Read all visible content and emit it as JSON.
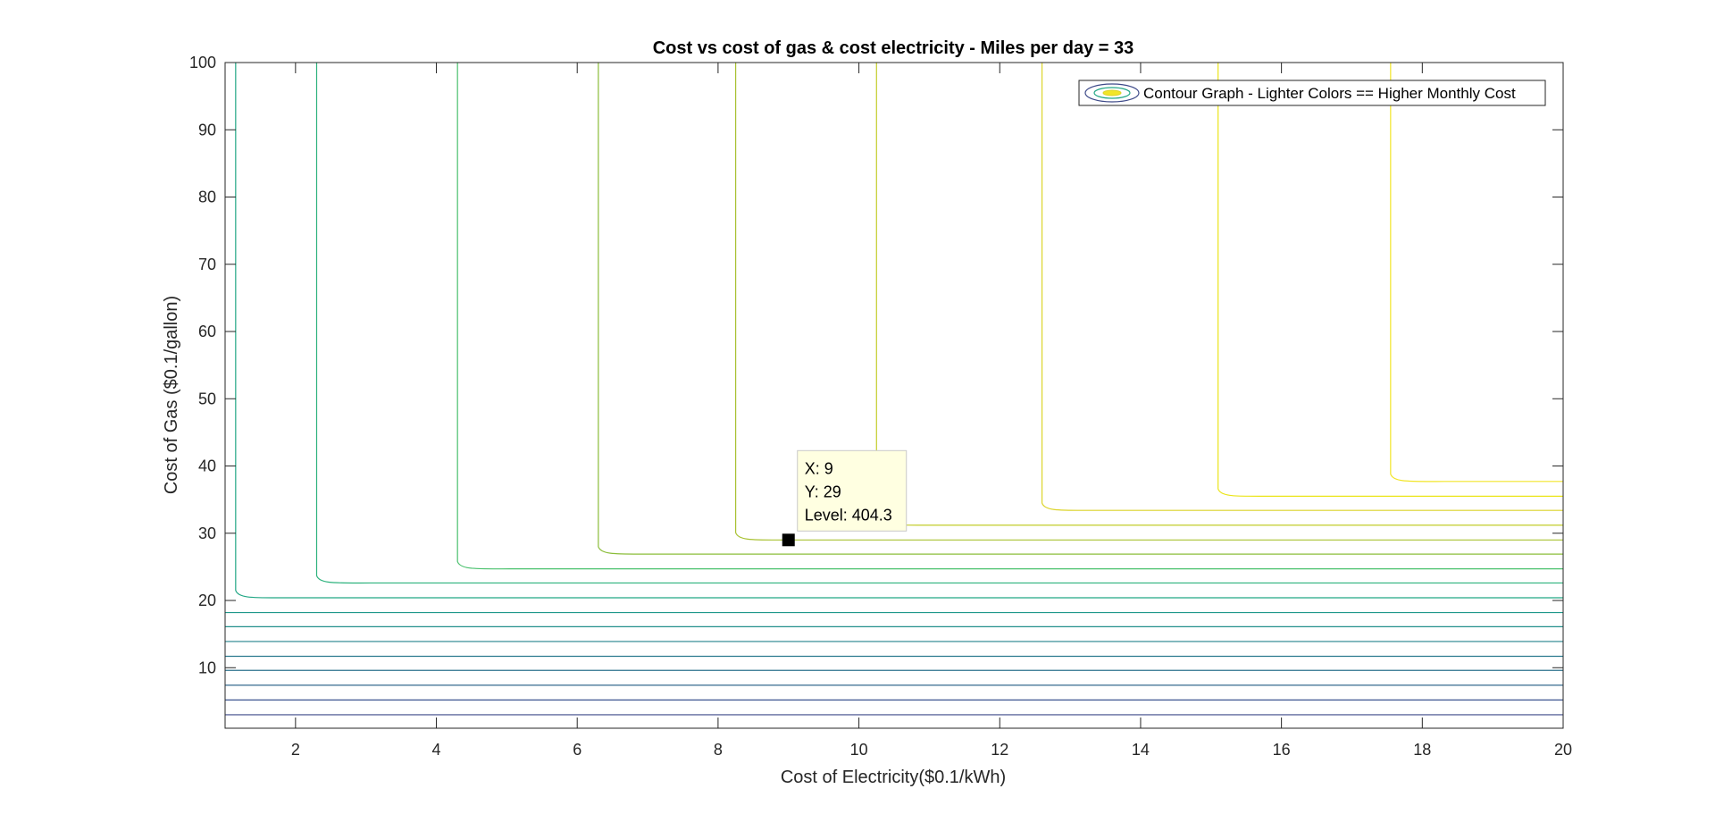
{
  "chart_data": {
    "type": "contour",
    "title": "Cost vs cost of gas & cost electricity  - Miles per day = 33",
    "xlabel": "Cost of Electricity($0.1/kWh)",
    "ylabel": "Cost of Gas ($0.1/gallon)",
    "xlim": [
      1,
      20
    ],
    "ylim": [
      1,
      100
    ],
    "xticks": [
      2,
      4,
      6,
      8,
      10,
      12,
      14,
      16,
      18,
      20
    ],
    "yticks": [
      10,
      20,
      30,
      40,
      50,
      60,
      70,
      80,
      90,
      100
    ],
    "xtick_labels": [
      "2",
      "4",
      "6",
      "8",
      "10",
      "12",
      "14",
      "16",
      "18",
      "20"
    ],
    "ytick_labels": [
      "10",
      "20",
      "30",
      "40",
      "50",
      "60",
      "70",
      "80",
      "90",
      "100"
    ],
    "legend": {
      "label": "Contour Graph - Lighter Colors == Higher Monthly Cost",
      "placement": "top-right"
    },
    "contours": [
      {
        "x_vertical": null,
        "y_horizontal": 3.0,
        "color": "#3e4a89"
      },
      {
        "x_vertical": null,
        "y_horizontal": 5.2,
        "color": "#3d5590"
      },
      {
        "x_vertical": null,
        "y_horizontal": 7.4,
        "color": "#366a8f"
      },
      {
        "x_vertical": null,
        "y_horizontal": 9.6,
        "color": "#2c728e"
      },
      {
        "x_vertical": null,
        "y_horizontal": 11.7,
        "color": "#2a7a8e"
      },
      {
        "x_vertical": null,
        "y_horizontal": 13.9,
        "color": "#26838e"
      },
      {
        "x_vertical": null,
        "y_horizontal": 16.1,
        "color": "#22908c"
      },
      {
        "x_vertical": null,
        "y_horizontal": 18.2,
        "color": "#1f988b"
      },
      {
        "x_vertical": 1.15,
        "y_horizontal": 20.4,
        "color": "#22a785"
      },
      {
        "x_vertical": 2.3,
        "y_horizontal": 22.6,
        "color": "#2db27d"
      },
      {
        "x_vertical": 4.3,
        "y_horizontal": 24.7,
        "color": "#4ac16d"
      },
      {
        "x_vertical": 6.3,
        "y_horizontal": 26.9,
        "color": "#8bbd3a"
      },
      {
        "x_vertical": 8.25,
        "y_horizontal": 29.0,
        "color": "#a9c233"
      },
      {
        "x_vertical": 10.25,
        "y_horizontal": 31.2,
        "color": "#c3cc2a"
      },
      {
        "x_vertical": 12.6,
        "y_horizontal": 33.4,
        "color": "#dcd42a"
      },
      {
        "x_vertical": 15.1,
        "y_horizontal": 35.5,
        "color": "#ebe51a"
      },
      {
        "x_vertical": 17.55,
        "y_horizontal": 37.7,
        "color": "#f2e528"
      }
    ],
    "datatip": {
      "x": 9,
      "y": 29,
      "level": 404.3,
      "lines": [
        "X: 9",
        "Y: 29",
        "Level: 404.3"
      ]
    },
    "grid": false
  }
}
